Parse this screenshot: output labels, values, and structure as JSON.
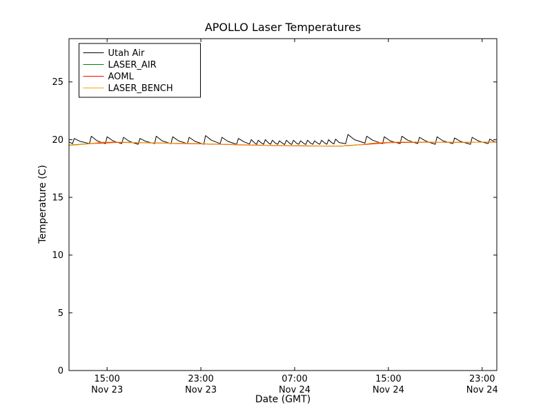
{
  "chart_data": {
    "type": "line",
    "title": "APOLLO Laser Temperatures",
    "xlabel": "Date (GMT)",
    "ylabel": "Temperature (C)",
    "x_unit": "hours, 0 = Nov 23 12:00 GMT",
    "xlim": [
      -0.25,
      36.25
    ],
    "ylim": [
      0,
      28.75
    ],
    "grid": false,
    "legend_position": "upper left",
    "yticks": [
      0,
      5,
      10,
      15,
      20,
      25
    ],
    "xticks": [
      {
        "t": 3,
        "line1": "15:00",
        "line2": "Nov 23"
      },
      {
        "t": 11,
        "line1": "23:00",
        "line2": "Nov 23"
      },
      {
        "t": 19,
        "line1": "07:00",
        "line2": "Nov 24"
      },
      {
        "t": 27,
        "line1": "15:00",
        "line2": "Nov 24"
      },
      {
        "t": 35,
        "line1": "23:00",
        "line2": "Nov 24"
      }
    ],
    "series": [
      {
        "name": "Utah Air",
        "color": "#000000",
        "points": [
          [
            -0.25,
            19.8
          ],
          [
            0.05,
            19.65
          ],
          [
            0.2,
            20.1
          ],
          [
            0.7,
            19.85
          ],
          [
            1.5,
            19.65
          ],
          [
            1.65,
            20.3
          ],
          [
            2.15,
            19.9
          ],
          [
            2.85,
            19.65
          ],
          [
            3.0,
            20.25
          ],
          [
            3.5,
            19.9
          ],
          [
            4.25,
            19.65
          ],
          [
            4.4,
            20.2
          ],
          [
            4.9,
            19.85
          ],
          [
            5.65,
            19.6
          ],
          [
            5.8,
            20.1
          ],
          [
            6.3,
            19.85
          ],
          [
            7.05,
            19.65
          ],
          [
            7.2,
            20.3
          ],
          [
            7.7,
            19.9
          ],
          [
            8.45,
            19.65
          ],
          [
            8.6,
            20.25
          ],
          [
            9.1,
            19.9
          ],
          [
            9.85,
            19.65
          ],
          [
            10.0,
            20.2
          ],
          [
            10.5,
            19.85
          ],
          [
            11.25,
            19.6
          ],
          [
            11.4,
            20.35
          ],
          [
            11.9,
            19.95
          ],
          [
            12.65,
            19.65
          ],
          [
            12.8,
            20.2
          ],
          [
            13.3,
            19.85
          ],
          [
            14.05,
            19.6
          ],
          [
            14.2,
            20.1
          ],
          [
            14.7,
            19.8
          ],
          [
            15.15,
            19.62
          ],
          [
            15.3,
            20.0
          ],
          [
            15.55,
            19.75
          ],
          [
            15.75,
            19.6
          ],
          [
            15.9,
            19.95
          ],
          [
            16.15,
            19.72
          ],
          [
            16.35,
            19.6
          ],
          [
            16.5,
            20.0
          ],
          [
            16.75,
            19.73
          ],
          [
            16.95,
            19.6
          ],
          [
            17.1,
            19.95
          ],
          [
            17.35,
            19.7
          ],
          [
            17.55,
            19.6
          ],
          [
            17.7,
            19.9
          ],
          [
            17.95,
            19.7
          ],
          [
            18.15,
            19.58
          ],
          [
            18.3,
            19.95
          ],
          [
            18.55,
            19.7
          ],
          [
            18.75,
            19.58
          ],
          [
            18.9,
            19.95
          ],
          [
            19.15,
            19.7
          ],
          [
            19.35,
            19.6
          ],
          [
            19.5,
            19.9
          ],
          [
            19.75,
            19.7
          ],
          [
            19.95,
            19.58
          ],
          [
            20.1,
            19.95
          ],
          [
            20.35,
            19.7
          ],
          [
            20.55,
            19.6
          ],
          [
            20.7,
            19.9
          ],
          [
            20.95,
            19.7
          ],
          [
            21.15,
            19.6
          ],
          [
            21.3,
            19.95
          ],
          [
            21.55,
            19.72
          ],
          [
            21.75,
            19.6
          ],
          [
            21.9,
            20.0
          ],
          [
            22.15,
            19.75
          ],
          [
            22.35,
            19.62
          ],
          [
            22.5,
            20.05
          ],
          [
            22.8,
            19.75
          ],
          [
            23.35,
            19.65
          ],
          [
            23.55,
            20.45
          ],
          [
            24.1,
            20.0
          ],
          [
            25.0,
            19.7
          ],
          [
            25.15,
            20.3
          ],
          [
            25.65,
            19.95
          ],
          [
            26.5,
            19.65
          ],
          [
            26.65,
            20.25
          ],
          [
            27.15,
            19.9
          ],
          [
            28.0,
            19.65
          ],
          [
            28.15,
            20.3
          ],
          [
            28.65,
            19.95
          ],
          [
            29.5,
            19.65
          ],
          [
            29.65,
            20.2
          ],
          [
            30.15,
            19.9
          ],
          [
            31.0,
            19.6
          ],
          [
            31.15,
            20.25
          ],
          [
            31.65,
            19.9
          ],
          [
            32.5,
            19.65
          ],
          [
            32.65,
            20.15
          ],
          [
            33.15,
            19.85
          ],
          [
            34.0,
            19.6
          ],
          [
            34.15,
            20.2
          ],
          [
            34.65,
            19.9
          ],
          [
            35.5,
            19.65
          ],
          [
            35.65,
            20.05
          ],
          [
            36.0,
            19.85
          ],
          [
            36.25,
            19.8
          ]
        ]
      },
      {
        "name": "LASER_AIR",
        "color": "#008000",
        "points": [
          [
            -0.25,
            19.52
          ],
          [
            2,
            19.7
          ],
          [
            4,
            19.78
          ],
          [
            8,
            19.7
          ],
          [
            12,
            19.62
          ],
          [
            16,
            19.52
          ],
          [
            20,
            19.46
          ],
          [
            23,
            19.45
          ],
          [
            25,
            19.6
          ],
          [
            27,
            19.75
          ],
          [
            30,
            19.79
          ],
          [
            33,
            19.77
          ],
          [
            36.25,
            19.8
          ]
        ]
      },
      {
        "name": "AOML",
        "color": "#ff0000",
        "points": [
          [
            -0.25,
            19.5
          ],
          [
            2,
            19.68
          ],
          [
            4,
            19.76
          ],
          [
            8,
            19.69
          ],
          [
            12,
            19.61
          ],
          [
            16,
            19.51
          ],
          [
            20,
            19.45
          ],
          [
            23,
            19.44
          ],
          [
            25,
            19.58
          ],
          [
            27,
            19.74
          ],
          [
            30,
            19.78
          ],
          [
            33,
            19.76
          ],
          [
            36.25,
            19.79
          ]
        ]
      },
      {
        "name": "LASER_BENCH",
        "color": "#ffa500",
        "points": [
          [
            -0.25,
            19.5
          ],
          [
            0.5,
            19.55
          ],
          [
            1.5,
            19.65
          ],
          [
            2.5,
            19.78
          ],
          [
            3.5,
            19.8
          ],
          [
            4.5,
            19.78
          ],
          [
            6,
            19.73
          ],
          [
            8,
            19.7
          ],
          [
            10,
            19.68
          ],
          [
            12,
            19.63
          ],
          [
            14,
            19.58
          ],
          [
            16,
            19.53
          ],
          [
            18,
            19.5
          ],
          [
            20,
            19.47
          ],
          [
            22,
            19.45
          ],
          [
            23.5,
            19.46
          ],
          [
            24.5,
            19.55
          ],
          [
            25.5,
            19.68
          ],
          [
            26.5,
            19.76
          ],
          [
            28,
            19.8
          ],
          [
            30,
            19.8
          ],
          [
            32,
            19.78
          ],
          [
            34,
            19.78
          ],
          [
            35.5,
            19.8
          ],
          [
            36.25,
            19.82
          ]
        ]
      }
    ]
  }
}
